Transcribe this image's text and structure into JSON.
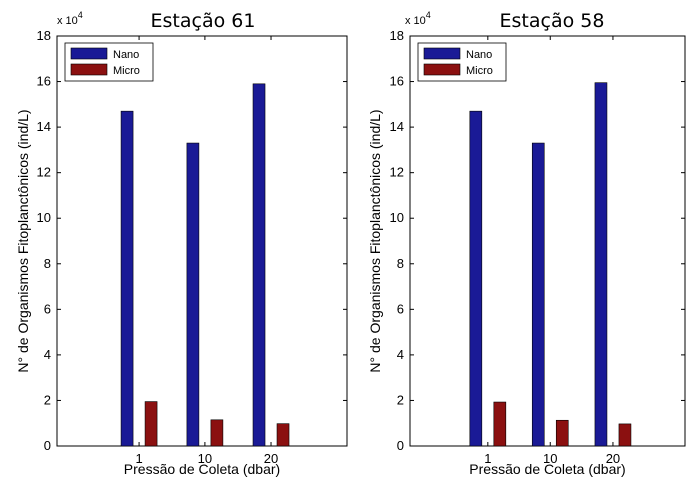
{
  "chart_data": [
    {
      "type": "bar",
      "title": "Estação 61",
      "xlabel": "Pressão de Coleta (dbar)",
      "ylabel": "N° de Organismos Fitoplanctônicos (ind/L)",
      "exponent_base": "x 10",
      "exponent_power": "4",
      "categories": [
        "1",
        "10",
        "20"
      ],
      "yticks": [
        "0",
        "2",
        "4",
        "6",
        "8",
        "10",
        "12",
        "14",
        "16",
        "18"
      ],
      "ylim": [
        0,
        18
      ],
      "legend_position": "top-left",
      "grid": false,
      "series": [
        {
          "name": "Nano",
          "color": "#1a1a96",
          "values": [
            14.7,
            13.3,
            15.9
          ]
        },
        {
          "name": "Micro",
          "color": "#8b1010",
          "values": [
            1.95,
            1.15,
            0.98
          ]
        }
      ]
    },
    {
      "type": "bar",
      "title": "Estação 58",
      "xlabel": "Pressão de Coleta (dbar)",
      "ylabel": "N° de Organismos Fitoplanctônicos (ind/L)",
      "exponent_base": "x 10",
      "exponent_power": "4",
      "categories": [
        "1",
        "10",
        "20"
      ],
      "yticks": [
        "0",
        "2",
        "4",
        "6",
        "8",
        "10",
        "12",
        "14",
        "16",
        "18"
      ],
      "ylim": [
        0,
        18
      ],
      "legend_position": "top-left",
      "grid": false,
      "series": [
        {
          "name": "Nano",
          "color": "#1a1a96",
          "values": [
            14.7,
            13.3,
            15.95
          ]
        },
        {
          "name": "Micro",
          "color": "#8b1010",
          "values": [
            1.93,
            1.13,
            0.97
          ]
        }
      ]
    }
  ]
}
